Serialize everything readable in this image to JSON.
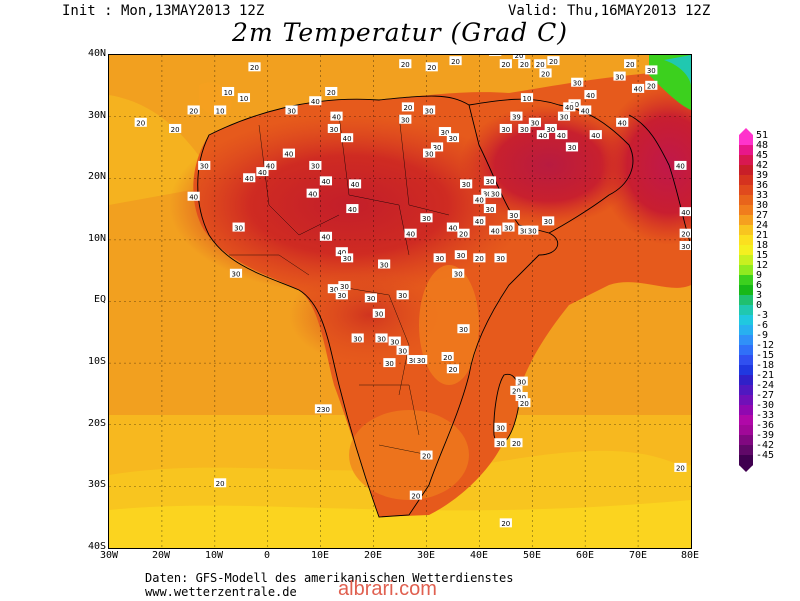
{
  "header": {
    "init": "Init : Mon,13MAY2013 12Z",
    "valid": "Valid: Thu,16MAY2013 12Z",
    "title": "2m Temperatur (Grad C)"
  },
  "axes": {
    "lat_labels": [
      "40N",
      "30N",
      "20N",
      "10N",
      "EQ",
      "10S",
      "20S",
      "30S",
      "40S"
    ],
    "lon_labels": [
      "30W",
      "20W",
      "10W",
      "0",
      "10E",
      "20E",
      "30E",
      "40E",
      "50E",
      "60E",
      "70E",
      "80E"
    ],
    "lon_range": [
      -30,
      80
    ],
    "lat_range": [
      -40,
      40
    ]
  },
  "colorbar": {
    "labels": [
      "51",
      "48",
      "45",
      "42",
      "39",
      "36",
      "33",
      "30",
      "27",
      "24",
      "21",
      "18",
      "15",
      "12",
      "9",
      "6",
      "3",
      "0",
      "-3",
      "-6",
      "-9",
      "-12",
      "-15",
      "-18",
      "-21",
      "-24",
      "-27",
      "-30",
      "-33",
      "-36",
      "-39",
      "-42",
      "-45"
    ],
    "colors": [
      "#ff33cc",
      "#e8178a",
      "#d81850",
      "#c81e28",
      "#d5331f",
      "#e04a1d",
      "#e8641b",
      "#f07d1d",
      "#f5a01f",
      "#f8c51f",
      "#fbe01f",
      "#f4f020",
      "#c8f020",
      "#90ea20",
      "#3cd01e",
      "#18b818",
      "#20c070",
      "#20c8b0",
      "#20c8e0",
      "#28b0f0",
      "#3090f8",
      "#3070f8",
      "#3050f0",
      "#2038e0",
      "#3020c8",
      "#5018c0",
      "#7010b8",
      "#9008b0",
      "#b008a8",
      "#a00898",
      "#800880",
      "#600868",
      "#400050"
    ]
  },
  "temperature_labels": [
    {
      "lon": -2.5,
      "lat": 38,
      "text": "20"
    },
    {
      "lon": -7.5,
      "lat": 34,
      "text": "10"
    },
    {
      "lon": -4.5,
      "lat": 33,
      "text": "10"
    },
    {
      "lon": -9,
      "lat": 31,
      "text": "10"
    },
    {
      "lon": -14,
      "lat": 31,
      "text": "20"
    },
    {
      "lon": -17.5,
      "lat": 28,
      "text": "20"
    },
    {
      "lon": -24,
      "lat": 29,
      "text": "20"
    },
    {
      "lon": 4.5,
      "lat": 31,
      "text": "30"
    },
    {
      "lon": 9,
      "lat": 32.5,
      "text": "40"
    },
    {
      "lon": 12,
      "lat": 34,
      "text": "20"
    },
    {
      "lon": 13,
      "lat": 30,
      "text": "40"
    },
    {
      "lon": 12.5,
      "lat": 28,
      "text": "30"
    },
    {
      "lon": 15,
      "lat": 26.5,
      "text": "40"
    },
    {
      "lon": 26.5,
      "lat": 31.5,
      "text": "20"
    },
    {
      "lon": 30.5,
      "lat": 31,
      "text": "30"
    },
    {
      "lon": 26,
      "lat": 29.5,
      "text": "30"
    },
    {
      "lon": 26,
      "lat": 38.5,
      "text": "20"
    },
    {
      "lon": 31,
      "lat": 38,
      "text": "20"
    },
    {
      "lon": 35.5,
      "lat": 39,
      "text": "20"
    },
    {
      "lon": 43,
      "lat": 40.5,
      "text": "20"
    },
    {
      "lon": 45,
      "lat": 38.5,
      "text": "20"
    },
    {
      "lon": 47.5,
      "lat": 40,
      "text": "20"
    },
    {
      "lon": 48.5,
      "lat": 38.5,
      "text": "20"
    },
    {
      "lon": 51.5,
      "lat": 38.5,
      "text": "20"
    },
    {
      "lon": 52.5,
      "lat": 37,
      "text": "20"
    },
    {
      "lon": 54,
      "lat": 39,
      "text": "20"
    },
    {
      "lon": 58.5,
      "lat": 35.5,
      "text": "30"
    },
    {
      "lon": 61,
      "lat": 33.5,
      "text": "40"
    },
    {
      "lon": 68.5,
      "lat": 38.5,
      "text": "20"
    },
    {
      "lon": 66.5,
      "lat": 36.5,
      "text": "30"
    },
    {
      "lon": 72.5,
      "lat": 35,
      "text": "20"
    },
    {
      "lon": 72.5,
      "lat": 37.5,
      "text": "30"
    },
    {
      "lon": 70,
      "lat": 34.5,
      "text": "40"
    },
    {
      "lon": 58,
      "lat": 32,
      "text": "30"
    },
    {
      "lon": 57,
      "lat": 31.5,
      "text": "40"
    },
    {
      "lon": 60,
      "lat": 31,
      "text": "40"
    },
    {
      "lon": 56,
      "lat": 30,
      "text": "30"
    },
    {
      "lon": 49,
      "lat": 33,
      "text": "10"
    },
    {
      "lon": 47,
      "lat": 30,
      "text": "39"
    },
    {
      "lon": 45,
      "lat": 28,
      "text": "30"
    },
    {
      "lon": 48.5,
      "lat": 28,
      "text": "30"
    },
    {
      "lon": 50.5,
      "lat": 29,
      "text": "30"
    },
    {
      "lon": 52,
      "lat": 27,
      "text": "40"
    },
    {
      "lon": 53.5,
      "lat": 28,
      "text": "30"
    },
    {
      "lon": 55.5,
      "lat": 27,
      "text": "40"
    },
    {
      "lon": 57.5,
      "lat": 25,
      "text": "30"
    },
    {
      "lon": 62,
      "lat": 27,
      "text": "40"
    },
    {
      "lon": 67,
      "lat": 29,
      "text": "40"
    },
    {
      "lon": 78,
      "lat": 22,
      "text": "40"
    },
    {
      "lon": 79,
      "lat": 14.5,
      "text": "40"
    },
    {
      "lon": 79,
      "lat": 11,
      "text": "20"
    },
    {
      "lon": 79,
      "lat": 9,
      "text": "30"
    },
    {
      "lon": 33.5,
      "lat": 27.5,
      "text": "30"
    },
    {
      "lon": 35,
      "lat": 26.5,
      "text": "30"
    },
    {
      "lon": 32,
      "lat": 25,
      "text": "30"
    },
    {
      "lon": 37.5,
      "lat": 19,
      "text": "30"
    },
    {
      "lon": 42,
      "lat": 19.5,
      "text": "30"
    },
    {
      "lon": 41.5,
      "lat": 17.5,
      "text": "30"
    },
    {
      "lon": 43,
      "lat": 17.5,
      "text": "30"
    },
    {
      "lon": 40,
      "lat": 16.5,
      "text": "40"
    },
    {
      "lon": 42,
      "lat": 15,
      "text": "30"
    },
    {
      "lon": 40,
      "lat": 13,
      "text": "40"
    },
    {
      "lon": 46.5,
      "lat": 14,
      "text": "30"
    },
    {
      "lon": 45.5,
      "lat": 12,
      "text": "30"
    },
    {
      "lon": 48.5,
      "lat": 11.5,
      "text": "30"
    },
    {
      "lon": 50,
      "lat": 11.5,
      "text": "30"
    },
    {
      "lon": 53,
      "lat": 13,
      "text": "30"
    },
    {
      "lon": 43,
      "lat": 11.5,
      "text": "40"
    },
    {
      "lon": 35,
      "lat": 12,
      "text": "40"
    },
    {
      "lon": 37,
      "lat": 11,
      "text": "20"
    },
    {
      "lon": -12,
      "lat": 22,
      "text": "30"
    },
    {
      "lon": -3.5,
      "lat": 20,
      "text": "40"
    },
    {
      "lon": -1,
      "lat": 21,
      "text": "40"
    },
    {
      "lon": 0.5,
      "lat": 22,
      "text": "40"
    },
    {
      "lon": 4,
      "lat": 24,
      "text": "40"
    },
    {
      "lon": 9,
      "lat": 22,
      "text": "30"
    },
    {
      "lon": -14,
      "lat": 17,
      "text": "40"
    },
    {
      "lon": 8.5,
      "lat": 17.5,
      "text": "40"
    },
    {
      "lon": 11,
      "lat": 19.5,
      "text": "40"
    },
    {
      "lon": 16.5,
      "lat": 19,
      "text": "40"
    },
    {
      "lon": 16,
      "lat": 15,
      "text": "40"
    },
    {
      "lon": -5.5,
      "lat": 12,
      "text": "30"
    },
    {
      "lon": 11,
      "lat": 10.5,
      "text": "40"
    },
    {
      "lon": 14,
      "lat": 8,
      "text": "40"
    },
    {
      "lon": 27,
      "lat": 11,
      "text": "40"
    },
    {
      "lon": 30.5,
      "lat": 24,
      "text": "30"
    },
    {
      "lon": 30,
      "lat": 13.5,
      "text": "30"
    },
    {
      "lon": 32.5,
      "lat": 7,
      "text": "30"
    },
    {
      "lon": 15,
      "lat": 7,
      "text": "30"
    },
    {
      "lon": 22,
      "lat": 6,
      "text": "30"
    },
    {
      "lon": 36.5,
      "lat": 7.5,
      "text": "30"
    },
    {
      "lon": 36,
      "lat": 4.5,
      "text": "30"
    },
    {
      "lon": 40,
      "lat": 7,
      "text": "20"
    },
    {
      "lon": 44,
      "lat": 7,
      "text": "30"
    },
    {
      "lon": -6,
      "lat": 4.5,
      "text": "30"
    },
    {
      "lon": 12.5,
      "lat": 2,
      "text": "30"
    },
    {
      "lon": 14.5,
      "lat": 2.5,
      "text": "30"
    },
    {
      "lon": 14,
      "lat": 1,
      "text": "30"
    },
    {
      "lon": 19.5,
      "lat": 0.5,
      "text": "30"
    },
    {
      "lon": 25.5,
      "lat": 1,
      "text": "30"
    },
    {
      "lon": 21,
      "lat": -2,
      "text": "30"
    },
    {
      "lon": 37,
      "lat": -4.5,
      "text": "30"
    },
    {
      "lon": 17,
      "lat": -6,
      "text": "30"
    },
    {
      "lon": 21.5,
      "lat": -6,
      "text": "30"
    },
    {
      "lon": 24,
      "lat": -6.5,
      "text": "30"
    },
    {
      "lon": 25.5,
      "lat": -8,
      "text": "30"
    },
    {
      "lon": 27.5,
      "lat": -9.5,
      "text": "30"
    },
    {
      "lon": 29,
      "lat": -9.5,
      "text": "30"
    },
    {
      "lon": 34,
      "lat": -9,
      "text": "20"
    },
    {
      "lon": 35,
      "lat": -11,
      "text": "20"
    },
    {
      "lon": 23,
      "lat": -10,
      "text": "30"
    },
    {
      "lon": 10.5,
      "lat": -17.5,
      "text": "230"
    },
    {
      "lon": 48,
      "lat": -13,
      "text": "30"
    },
    {
      "lon": 47,
      "lat": -14.5,
      "text": "20"
    },
    {
      "lon": 48,
      "lat": -15.5,
      "text": "30"
    },
    {
      "lon": 48.5,
      "lat": -16.5,
      "text": "20"
    },
    {
      "lon": 44,
      "lat": -20.5,
      "text": "30"
    },
    {
      "lon": 44,
      "lat": -23,
      "text": "30"
    },
    {
      "lon": 47,
      "lat": -23,
      "text": "20"
    },
    {
      "lon": 30,
      "lat": -25,
      "text": "20"
    },
    {
      "lon": 28,
      "lat": -31.5,
      "text": "20"
    },
    {
      "lon": -9,
      "lat": -29.5,
      "text": "20"
    },
    {
      "lon": 78,
      "lat": -27,
      "text": "20"
    },
    {
      "lon": 45,
      "lat": -36,
      "text": "20"
    }
  ],
  "footer": {
    "source": "Daten: GFS-Modell des amerikanischen Wetterdienstes",
    "url": "www.wetterzentrale.de",
    "watermark": "albrari.com"
  }
}
